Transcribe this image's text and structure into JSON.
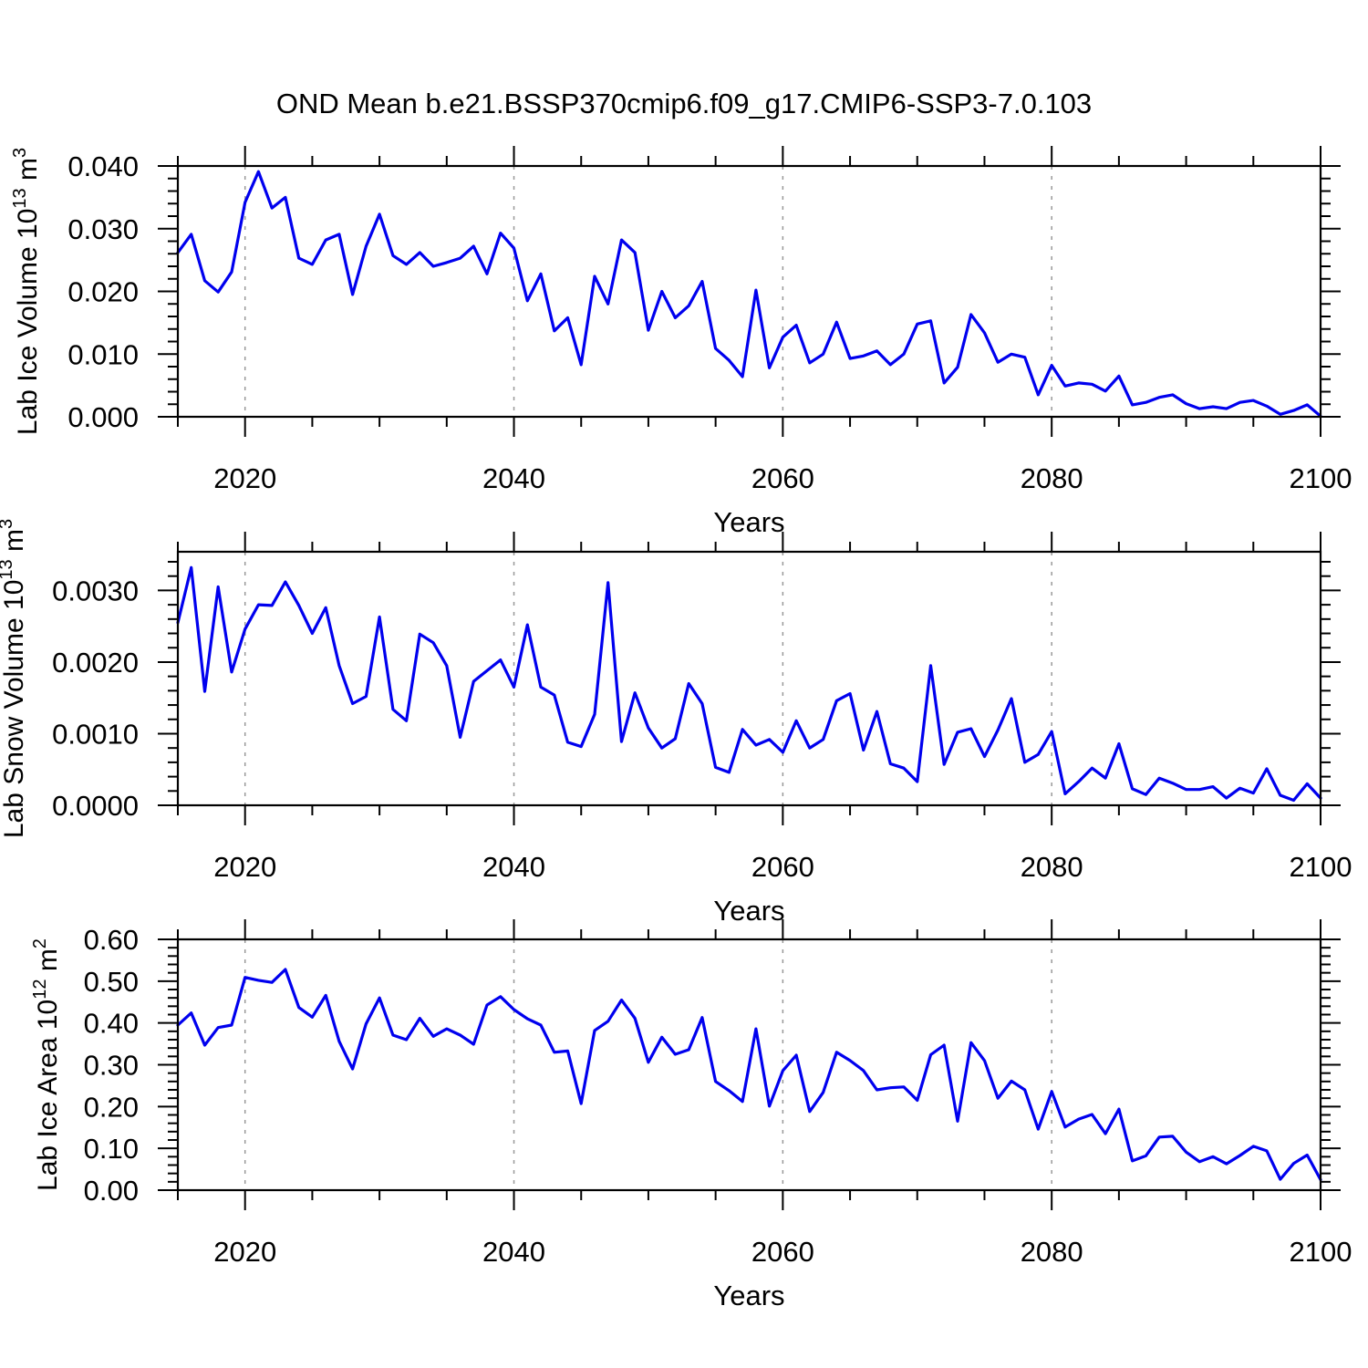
{
  "title": "OND Mean b.e21.BSSP370cmip6.f09_g17.CMIP6-SSP3-7.0.103",
  "chart_data": [
    {
      "type": "line",
      "name": "lab-ice-volume",
      "ylabel_parts": [
        {
          "t": "Lab Ice Volume 10"
        },
        {
          "t": "13",
          "sup": true
        },
        {
          "t": " m"
        },
        {
          "t": "3",
          "sup": true
        }
      ],
      "xlabel": "Years",
      "x_start": 2015,
      "x_step": 1,
      "xlim": [
        2015,
        2100
      ],
      "ylim": [
        0,
        0.04
      ],
      "xticks": {
        "values": [
          2020,
          2040,
          2060,
          2080,
          2100
        ],
        "labels": [
          "2020",
          "2040",
          "2060",
          "2080",
          "2100"
        ]
      },
      "x_minor_step": 5,
      "yticks": {
        "values": [
          0,
          0.01,
          0.02,
          0.03,
          0.04
        ],
        "labels": [
          "0.000",
          "0.010",
          "0.020",
          "0.030",
          "0.040"
        ]
      },
      "y_minor_step": 0.002,
      "gridlines_x": [
        2020,
        2040,
        2060,
        2080
      ],
      "grid": "vertical-dashed",
      "legend": "none",
      "line_color": "#0000ee",
      "values": [
        0.0262,
        0.0291,
        0.0217,
        0.0199,
        0.0231,
        0.0342,
        0.0391,
        0.0333,
        0.035,
        0.0253,
        0.0243,
        0.0282,
        0.0291,
        0.0195,
        0.0272,
        0.0323,
        0.0257,
        0.0243,
        0.0262,
        0.024,
        0.0246,
        0.0253,
        0.0272,
        0.0228,
        0.0293,
        0.0269,
        0.0185,
        0.0228,
        0.0137,
        0.0158,
        0.0083,
        0.0224,
        0.018,
        0.0282,
        0.0262,
        0.0138,
        0.02,
        0.0158,
        0.0177,
        0.0216,
        0.0109,
        0.009,
        0.0064,
        0.0202,
        0.0078,
        0.0127,
        0.0146,
        0.0086,
        0.01,
        0.0151,
        0.0093,
        0.0097,
        0.0105,
        0.0083,
        0.01,
        0.0148,
        0.0153,
        0.0054,
        0.0079,
        0.0163,
        0.0134,
        0.0087,
        0.01,
        0.0095,
        0.0035,
        0.0082,
        0.0049,
        0.0054,
        0.0052,
        0.0041,
        0.0065,
        0.0019,
        0.0023,
        0.0031,
        0.0035,
        0.0021,
        0.0013,
        0.0016,
        0.0013,
        0.0023,
        0.0026,
        0.0017,
        0.0004,
        0.001,
        0.0019,
        0.0001
      ]
    },
    {
      "type": "line",
      "name": "lab-snow-volume",
      "ylabel_parts": [
        {
          "t": "Lab Snow Volume 10"
        },
        {
          "t": "13",
          "sup": true
        },
        {
          "t": " m"
        },
        {
          "t": "3",
          "sup": true
        }
      ],
      "xlabel": "Years",
      "x_start": 2015,
      "x_step": 1,
      "xlim": [
        2015,
        2100
      ],
      "ylim": [
        0,
        0.00354
      ],
      "xticks": {
        "values": [
          2020,
          2040,
          2060,
          2080,
          2100
        ],
        "labels": [
          "2020",
          "2040",
          "2060",
          "2080",
          "2100"
        ]
      },
      "x_minor_step": 5,
      "yticks": {
        "values": [
          0,
          0.001,
          0.002,
          0.003
        ],
        "labels": [
          "0.0000",
          "0.0010",
          "0.0020",
          "0.0030"
        ]
      },
      "y_minor_step": 0.0002,
      "gridlines_x": [
        2020,
        2040,
        2060,
        2080
      ],
      "grid": "vertical-dashed",
      "legend": "none",
      "line_color": "#0000ee",
      "values": [
        0.00255,
        0.00332,
        0.00159,
        0.00305,
        0.00186,
        0.00246,
        0.0028,
        0.00279,
        0.00312,
        0.00279,
        0.0024,
        0.00276,
        0.00195,
        0.00142,
        0.00152,
        0.00263,
        0.00134,
        0.00118,
        0.00239,
        0.00227,
        0.00195,
        0.00095,
        0.00173,
        0.00188,
        0.00203,
        0.00165,
        0.00252,
        0.00165,
        0.00154,
        0.00088,
        0.00082,
        0.00127,
        0.00311,
        0.00089,
        0.00157,
        0.00108,
        0.0008,
        0.00093,
        0.0017,
        0.00142,
        0.00053,
        0.00046,
        0.00106,
        0.00084,
        0.00092,
        0.00074,
        0.00118,
        0.0008,
        0.00092,
        0.00146,
        0.00156,
        0.00077,
        0.00131,
        0.00058,
        0.00052,
        0.00033,
        0.00195,
        0.00057,
        0.00102,
        0.00107,
        0.00068,
        0.00105,
        0.00149,
        0.0006,
        0.00071,
        0.00103,
        0.00016,
        0.00033,
        0.00052,
        0.00038,
        0.00086,
        0.00023,
        0.00015,
        0.00038,
        0.00031,
        0.00022,
        0.00022,
        0.00026,
        0.0001,
        0.00024,
        0.00017,
        0.00051,
        0.00014,
        7e-05,
        0.0003,
        0.0001
      ]
    },
    {
      "type": "line",
      "name": "lab-ice-area",
      "ylabel_parts": [
        {
          "t": "Lab Ice Area 10"
        },
        {
          "t": "12",
          "sup": true
        },
        {
          "t": " m"
        },
        {
          "t": "2",
          "sup": true
        }
      ],
      "xlabel": "Years",
      "x_start": 2015,
      "x_step": 1,
      "xlim": [
        2015,
        2100
      ],
      "ylim": [
        0,
        0.6
      ],
      "xticks": {
        "values": [
          2020,
          2040,
          2060,
          2080,
          2100
        ],
        "labels": [
          "2020",
          "2040",
          "2060",
          "2080",
          "2100"
        ]
      },
      "x_minor_step": 5,
      "yticks": {
        "values": [
          0,
          0.1,
          0.2,
          0.3,
          0.4,
          0.5,
          0.6
        ],
        "labels": [
          "0.00",
          "0.10",
          "0.20",
          "0.30",
          "0.40",
          "0.50",
          "0.60"
        ]
      },
      "y_minor_step": 0.02,
      "gridlines_x": [
        2020,
        2040,
        2060,
        2080
      ],
      "grid": "vertical-dashed",
      "legend": "none",
      "line_color": "#0000ee",
      "values": [
        0.395,
        0.424,
        0.347,
        0.389,
        0.395,
        0.509,
        0.502,
        0.497,
        0.528,
        0.437,
        0.414,
        0.466,
        0.356,
        0.29,
        0.398,
        0.46,
        0.371,
        0.36,
        0.411,
        0.368,
        0.386,
        0.371,
        0.349,
        0.443,
        0.463,
        0.432,
        0.41,
        0.395,
        0.33,
        0.333,
        0.207,
        0.382,
        0.404,
        0.455,
        0.411,
        0.306,
        0.366,
        0.325,
        0.336,
        0.413,
        0.26,
        0.238,
        0.212,
        0.386,
        0.201,
        0.286,
        0.323,
        0.188,
        0.234,
        0.33,
        0.31,
        0.286,
        0.24,
        0.245,
        0.247,
        0.215,
        0.324,
        0.347,
        0.165,
        0.353,
        0.31,
        0.22,
        0.261,
        0.24,
        0.146,
        0.236,
        0.151,
        0.17,
        0.181,
        0.135,
        0.194,
        0.07,
        0.082,
        0.127,
        0.129,
        0.091,
        0.068,
        0.08,
        0.063,
        0.083,
        0.105,
        0.094,
        0.026,
        0.064,
        0.084,
        0.025
      ]
    }
  ]
}
